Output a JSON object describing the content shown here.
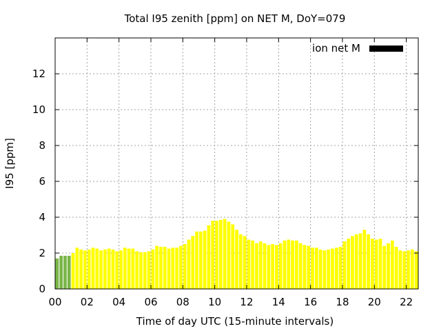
{
  "chart_data": {
    "type": "bar",
    "title": "Total I95 zenith [ppm] on NET M, DoY=079",
    "xlabel": "Time of day UTC (15-minute intervals)",
    "ylabel": "I95 [ppm]",
    "xlim": [
      0,
      22.75
    ],
    "ylim": [
      0,
      14
    ],
    "x_tick_labels": [
      "00",
      "02",
      "04",
      "06",
      "08",
      "10",
      "12",
      "14",
      "16",
      "18",
      "20",
      "22"
    ],
    "x_tick_values": [
      0,
      2,
      4,
      6,
      8,
      10,
      12,
      14,
      16,
      18,
      20,
      22
    ],
    "y_tick_labels": [
      "0",
      "2",
      "4",
      "6",
      "8",
      "10",
      "12"
    ],
    "y_tick_values": [
      0,
      2,
      4,
      6,
      8,
      10,
      12
    ],
    "grid": true,
    "legend": {
      "label": "ion net M",
      "color": "#000000",
      "position": "top-right"
    },
    "bar_colors": {
      "early": "#7ab648",
      "main": "#ffff00"
    },
    "green_bar_count": 4,
    "interval_hours": 0.25,
    "values": [
      1.7,
      1.85,
      1.85,
      1.85,
      2.0,
      2.3,
      2.2,
      2.15,
      2.2,
      2.3,
      2.25,
      2.15,
      2.2,
      2.25,
      2.2,
      2.1,
      2.15,
      2.3,
      2.25,
      2.25,
      2.1,
      2.05,
      2.05,
      2.1,
      2.2,
      2.4,
      2.35,
      2.35,
      2.25,
      2.3,
      2.3,
      2.4,
      2.5,
      2.75,
      2.95,
      3.2,
      3.2,
      3.25,
      3.55,
      3.8,
      3.8,
      3.85,
      3.9,
      3.75,
      3.6,
      3.3,
      3.05,
      2.95,
      2.75,
      2.7,
      2.55,
      2.65,
      2.55,
      2.45,
      2.5,
      2.45,
      2.55,
      2.7,
      2.75,
      2.7,
      2.7,
      2.55,
      2.45,
      2.4,
      2.3,
      2.3,
      2.2,
      2.15,
      2.2,
      2.25,
      2.3,
      2.35,
      2.65,
      2.8,
      2.95,
      3.05,
      3.1,
      3.3,
      3.05,
      2.8,
      2.75,
      2.8,
      2.4,
      2.55,
      2.7,
      2.35,
      2.15,
      2.1,
      2.15,
      2.2,
      2.1
    ]
  }
}
